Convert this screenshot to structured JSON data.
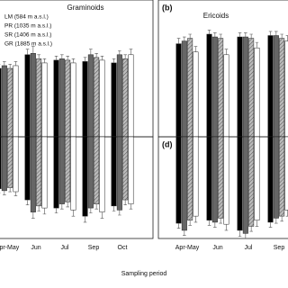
{
  "xlabel": "Sampling period",
  "chart_data": [
    {
      "type": "bar",
      "title": "Graminoids",
      "categories": [
        null,
        null,
        null,
        null,
        null
      ],
      "ylim": [
        0,
        100
      ],
      "series": [
        {
          "name": "LM (584 m a.s.l.)",
          "color": "#000000",
          "values": [
            50,
            60,
            56,
            55,
            54
          ],
          "errors": [
            3,
            4,
            3,
            3,
            3
          ]
        },
        {
          "name": "PR (1035 m a.s.l.)",
          "color": "#666666",
          "values": [
            52,
            61,
            57,
            60,
            60
          ],
          "errors": [
            3,
            5,
            3,
            4,
            3
          ]
        },
        {
          "name": "SR (1406 m a.s.l.)",
          "color": "#aaaaaa",
          "pattern": "hatch",
          "values": [
            50,
            57,
            56,
            58,
            57
          ],
          "errors": [
            3,
            3,
            3,
            3,
            3
          ]
        },
        {
          "name": "GR (1885 m a.s.l.)",
          "color": "#ffffff",
          "values": [
            52,
            54,
            54,
            56,
            60
          ],
          "errors": [
            3,
            3,
            3,
            3,
            4
          ]
        }
      ]
    },
    {
      "type": "bar",
      "panel_label": "(b)",
      "title": "Ericoids",
      "categories": [
        null,
        null,
        null,
        null
      ],
      "ylim": [
        0,
        100
      ],
      "series": [
        {
          "color": "#000000",
          "values": [
            68,
            75,
            73,
            74
          ],
          "errors": [
            4,
            3,
            3,
            3
          ]
        },
        {
          "color": "#666666",
          "values": [
            70,
            73,
            73,
            74
          ],
          "errors": [
            3,
            3,
            3,
            3
          ]
        },
        {
          "color": "#aaaaaa",
          "pattern": "hatch",
          "values": [
            72,
            72,
            72,
            72
          ],
          "errors": [
            3,
            3,
            3,
            3
          ]
        },
        {
          "color": "#ffffff",
          "values": [
            62,
            60,
            65,
            70
          ],
          "errors": [
            4,
            4,
            4,
            4
          ]
        }
      ]
    },
    {
      "type": "bar",
      "categories": [
        "Apr-May",
        "Jun",
        "Jul",
        "Sep",
        "Oct"
      ],
      "ylim": [
        -100,
        0
      ],
      "series": [
        {
          "color": "#000000",
          "values": [
            -51,
            -62,
            -70,
            -78,
            -68
          ],
          "errors": [
            4,
            5,
            5,
            6,
            5
          ]
        },
        {
          "color": "#666666",
          "values": [
            -53,
            -74,
            -66,
            -70,
            -72
          ],
          "errors": [
            4,
            6,
            5,
            5,
            5
          ]
        },
        {
          "color": "#aaaaaa",
          "pattern": "hatch",
          "values": [
            -50,
            -68,
            -64,
            -66,
            -62
          ],
          "errors": [
            4,
            5,
            5,
            5,
            5
          ]
        },
        {
          "color": "#ffffff",
          "values": [
            -54,
            -70,
            -72,
            -74,
            -66
          ],
          "errors": [
            4,
            6,
            6,
            6,
            5
          ]
        }
      ]
    },
    {
      "type": "bar",
      "panel_label": "(d)",
      "categories": [
        "Apr-May",
        "Jun",
        "Jul",
        "Sep"
      ],
      "ylim": [
        -100,
        0
      ],
      "series": [
        {
          "color": "#000000",
          "values": [
            -85,
            -82,
            -92,
            -84
          ],
          "errors": [
            5,
            5,
            6,
            5
          ]
        },
        {
          "color": "#666666",
          "values": [
            -92,
            -84,
            -95,
            -80
          ],
          "errors": [
            5,
            5,
            5,
            5
          ]
        },
        {
          "color": "#aaaaaa",
          "pattern": "hatch",
          "values": [
            -82,
            -80,
            -88,
            -78
          ],
          "errors": [
            5,
            5,
            5,
            5
          ]
        },
        {
          "color": "#ffffff",
          "values": [
            -78,
            -86,
            -82,
            -72
          ],
          "errors": [
            6,
            6,
            6,
            6
          ]
        }
      ]
    }
  ]
}
